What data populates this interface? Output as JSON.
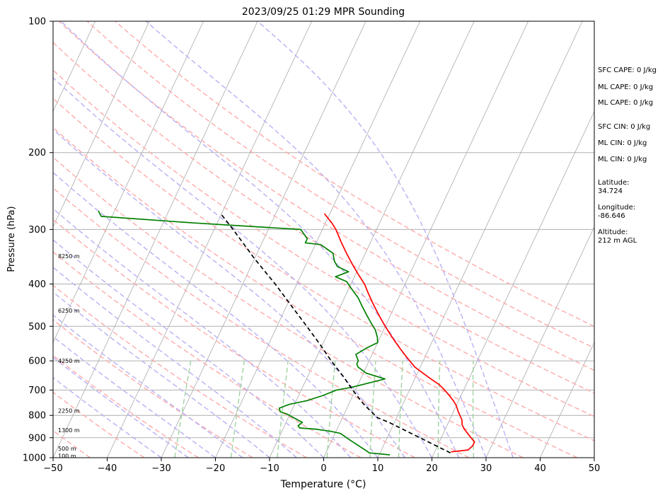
{
  "chart_data": {
    "type": "line",
    "title": "2023/09/25 01:29 MPR Sounding",
    "xlabel": "Temperature (°C)",
    "ylabel": "Pressure (hPa)",
    "xlim": [
      -50,
      50
    ],
    "ylim": [
      1000,
      100
    ],
    "y_scale": "log",
    "x_ticks": [
      -50,
      -40,
      -30,
      -20,
      -10,
      0,
      10,
      20,
      30,
      40,
      50
    ],
    "y_ticks": [
      100,
      200,
      300,
      400,
      500,
      600,
      700,
      800,
      900,
      1000
    ],
    "y_tick_labels": [
      "100",
      "200",
      "300",
      "400",
      "500",
      "600",
      "700",
      "800",
      "900",
      "1000"
    ],
    "grid": "horizontal pressure gridlines",
    "skew_deg_per_decade": 37.8,
    "isotherms_c": [
      -110,
      -100,
      -90,
      -80,
      -70,
      -60,
      -50,
      -40,
      -30,
      -20,
      -10,
      0,
      10,
      20,
      30,
      40,
      50
    ],
    "dry_adiabats_theta_k": [
      230,
      240,
      250,
      260,
      270,
      280,
      290,
      300,
      310,
      320,
      330,
      340,
      350,
      360,
      370,
      380
    ],
    "moist_adiabats_start_c": [
      -30,
      -25,
      -20,
      -15,
      -10,
      -5,
      0,
      5,
      10,
      15,
      20,
      25,
      30,
      35
    ],
    "mixing_ratio_lines_gkg": [
      0.4,
      1,
      2,
      4,
      7,
      10,
      16,
      24
    ],
    "colors": {
      "temperature": "#ff0000",
      "dewpoint": "#008000",
      "parcel": "#000000",
      "isotherm": "#aaaaaa",
      "dry_adiabat": "#ffaaaa",
      "moist_adiabat": "#b8b0f4",
      "mixing_ratio": "#9fd39f"
    },
    "height_labels": [
      {
        "p": 990,
        "label": "100 m"
      },
      {
        "p": 953,
        "label": "500 m"
      },
      {
        "p": 865,
        "label": "1300 m"
      },
      {
        "p": 780,
        "label": "2250 m"
      },
      {
        "p": 600,
        "label": "4250 m"
      },
      {
        "p": 460,
        "label": "6250 m"
      },
      {
        "p": 345,
        "label": "8250 m"
      }
    ],
    "series": [
      {
        "name": "Temperature",
        "points": [
          {
            "p": 970,
            "t": 23.0
          },
          {
            "p": 960,
            "t": 26.0
          },
          {
            "p": 940,
            "t": 26.5
          },
          {
            "p": 920,
            "t": 26.5
          },
          {
            "p": 900,
            "t": 25.5
          },
          {
            "p": 880,
            "t": 24.5
          },
          {
            "p": 860,
            "t": 23.5
          },
          {
            "p": 840,
            "t": 22.7
          },
          {
            "p": 820,
            "t": 22.3
          },
          {
            "p": 800,
            "t": 21.5
          },
          {
            "p": 780,
            "t": 20.7
          },
          {
            "p": 760,
            "t": 20.0
          },
          {
            "p": 740,
            "t": 19.0
          },
          {
            "p": 720,
            "t": 17.8
          },
          {
            "p": 700,
            "t": 16.5
          },
          {
            "p": 680,
            "t": 15.0
          },
          {
            "p": 660,
            "t": 13.0
          },
          {
            "p": 640,
            "t": 11.0
          },
          {
            "p": 620,
            "t": 9.0
          },
          {
            "p": 600,
            "t": 7.5
          },
          {
            "p": 580,
            "t": 6.0
          },
          {
            "p": 560,
            "t": 4.5
          },
          {
            "p": 540,
            "t": 3.0
          },
          {
            "p": 520,
            "t": 1.5
          },
          {
            "p": 500,
            "t": 0.0
          },
          {
            "p": 480,
            "t": -1.5
          },
          {
            "p": 460,
            "t": -3.0
          },
          {
            "p": 440,
            "t": -4.5
          },
          {
            "p": 420,
            "t": -6.0
          },
          {
            "p": 400,
            "t": -7.5
          },
          {
            "p": 380,
            "t": -9.5
          },
          {
            "p": 360,
            "t": -11.5
          },
          {
            "p": 340,
            "t": -13.5
          },
          {
            "p": 320,
            "t": -15.5
          },
          {
            "p": 300,
            "t": -17.5
          },
          {
            "p": 290,
            "t": -18.8
          },
          {
            "p": 276,
            "t": -21.0
          }
        ]
      },
      {
        "name": "Dewpoint",
        "points": [
          {
            "p": 985,
            "t": 12.0
          },
          {
            "p": 975,
            "t": 8.0
          },
          {
            "p": 960,
            "t": 7.0
          },
          {
            "p": 940,
            "t": 5.5
          },
          {
            "p": 920,
            "t": 4.0
          },
          {
            "p": 900,
            "t": 2.5
          },
          {
            "p": 880,
            "t": 1.0
          },
          {
            "p": 870,
            "t": -1.0
          },
          {
            "p": 860,
            "t": -4.0
          },
          {
            "p": 855,
            "t": -7.0
          },
          {
            "p": 845,
            "t": -7.5
          },
          {
            "p": 830,
            "t": -7.0
          },
          {
            "p": 810,
            "t": -9.0
          },
          {
            "p": 795,
            "t": -10.5
          },
          {
            "p": 785,
            "t": -12.0
          },
          {
            "p": 770,
            "t": -12.5
          },
          {
            "p": 755,
            "t": -11.0
          },
          {
            "p": 740,
            "t": -8.0
          },
          {
            "p": 720,
            "t": -5.5
          },
          {
            "p": 700,
            "t": -3.5
          },
          {
            "p": 690,
            "t": -1.0
          },
          {
            "p": 660,
            "t": 4.5
          },
          {
            "p": 640,
            "t": 0.5
          },
          {
            "p": 620,
            "t": -1.5
          },
          {
            "p": 610,
            "t": -2.0
          },
          {
            "p": 600,
            "t": -2.0
          },
          {
            "p": 580,
            "t": -3.0
          },
          {
            "p": 560,
            "t": -1.5
          },
          {
            "p": 545,
            "t": 0.0
          },
          {
            "p": 530,
            "t": -0.5
          },
          {
            "p": 510,
            "t": -1.5
          },
          {
            "p": 490,
            "t": -3.0
          },
          {
            "p": 470,
            "t": -4.5
          },
          {
            "p": 450,
            "t": -6.0
          },
          {
            "p": 430,
            "t": -7.5
          },
          {
            "p": 410,
            "t": -9.5
          },
          {
            "p": 395,
            "t": -11.0
          },
          {
            "p": 385,
            "t": -13.5
          },
          {
            "p": 375,
            "t": -11.5
          },
          {
            "p": 365,
            "t": -14.0
          },
          {
            "p": 355,
            "t": -15.0
          },
          {
            "p": 340,
            "t": -16.0
          },
          {
            "p": 325,
            "t": -19.0
          },
          {
            "p": 322,
            "t": -22.0
          },
          {
            "p": 315,
            "t": -22.0
          },
          {
            "p": 300,
            "t": -24.0
          },
          {
            "p": 290,
            "t": -44.0
          },
          {
            "p": 280,
            "t": -62.0
          },
          {
            "p": 272,
            "t": -63.0
          }
        ]
      },
      {
        "name": "Parcel",
        "points": [
          {
            "p": 975,
            "t": 23.0
          },
          {
            "p": 830,
            "t": 9.0
          },
          {
            "p": 810,
            "t": 6.5
          },
          {
            "p": 780,
            "t": 4.5
          },
          {
            "p": 750,
            "t": 2.5
          },
          {
            "p": 700,
            "t": -0.5
          },
          {
            "p": 650,
            "t": -3.5
          },
          {
            "p": 600,
            "t": -7.0
          },
          {
            "p": 550,
            "t": -10.5
          },
          {
            "p": 500,
            "t": -14.5
          },
          {
            "p": 450,
            "t": -19.0
          },
          {
            "p": 400,
            "t": -24.0
          },
          {
            "p": 350,
            "t": -30.0
          },
          {
            "p": 300,
            "t": -36.5
          },
          {
            "p": 277,
            "t": -40.0
          }
        ]
      }
    ],
    "stats": {
      "sfc_cape": "SFC CAPE: 0 J/kg",
      "ml_cape": "ML CAPE: 0 J/kg",
      "ml_cape_2": "ML CAPE: 0 J/kg",
      "sfc_cin": "SFC CIN: 0 J/kg",
      "ml_cin": "ML CIN: 0 J/kg",
      "ml_cin_2": "ML CIN: 0 J/kg",
      "latitude_label": "Latitude:",
      "latitude_value": "34.724",
      "longitude_label": "Longitude:",
      "longitude_value": "-86.646",
      "altitude_label": "Altitude:",
      "altitude_value": "212 m AGL"
    }
  }
}
